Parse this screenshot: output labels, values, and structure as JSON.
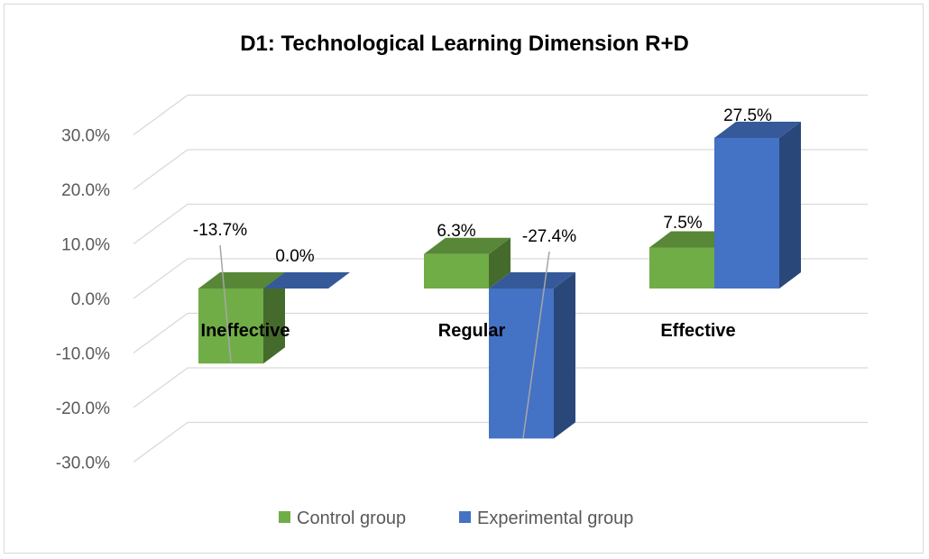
{
  "chart_data": {
    "type": "bar",
    "title": "D1: Technological Learning Dimension R+D",
    "categories": [
      "Ineffective",
      "Regular",
      "Effective"
    ],
    "series": [
      {
        "name": "Control group",
        "values": [
          -13.7,
          6.3,
          7.5
        ],
        "labels": [
          "-13.7%",
          "6.3%",
          "7.5%"
        ],
        "color": "#70ad47"
      },
      {
        "name": "Experimental group",
        "values": [
          0.0,
          -27.4,
          27.5
        ],
        "labels": [
          "0.0%",
          "-27.4%",
          "27.5%"
        ],
        "color": "#4472c4"
      }
    ],
    "y_ticks": [
      "30.0%",
      "20.0%",
      "10.0%",
      "0.0%",
      "-10.0%",
      "-20.0%",
      "-30.0%"
    ],
    "ylim": [
      -30,
      30
    ],
    "xlabel": "",
    "ylabel": "",
    "grid": true,
    "legend_position": "bottom",
    "three_d": true
  }
}
